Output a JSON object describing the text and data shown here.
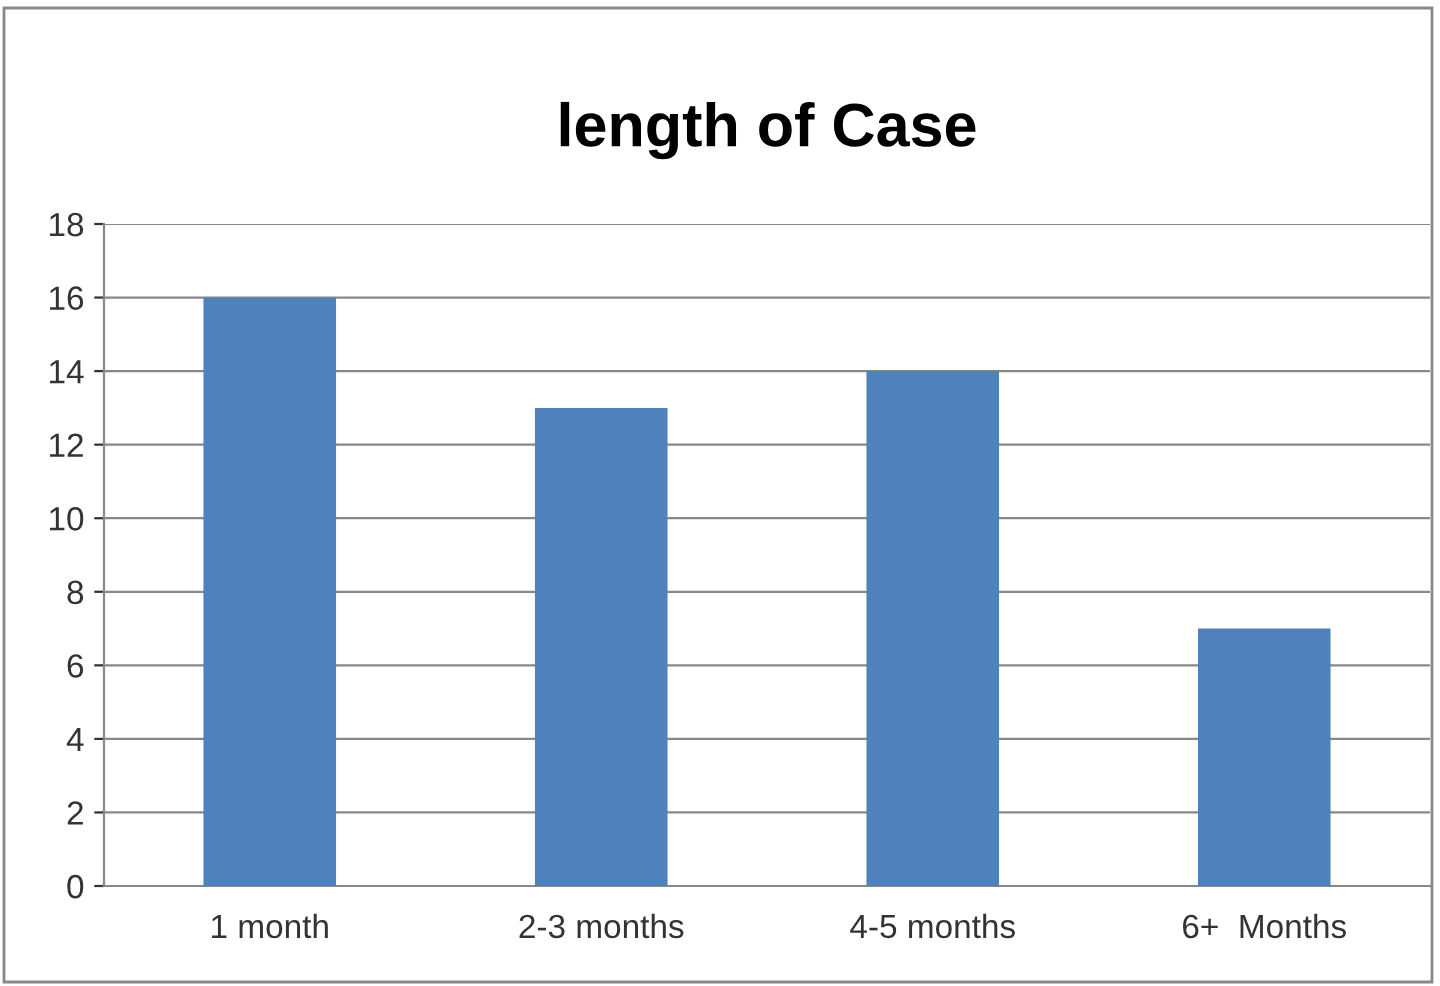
{
  "chart_data": {
    "type": "bar",
    "title": "length of Case",
    "categories": [
      "1 month",
      "2-3 months",
      "4-5 months",
      "6+  Months"
    ],
    "values": [
      16,
      13,
      14,
      7
    ],
    "color": "#4f81bd",
    "ylim": [
      0,
      18
    ],
    "yticks": [
      0,
      2,
      4,
      6,
      8,
      10,
      12,
      14,
      16,
      18
    ],
    "grid": "y",
    "legend": false
  }
}
